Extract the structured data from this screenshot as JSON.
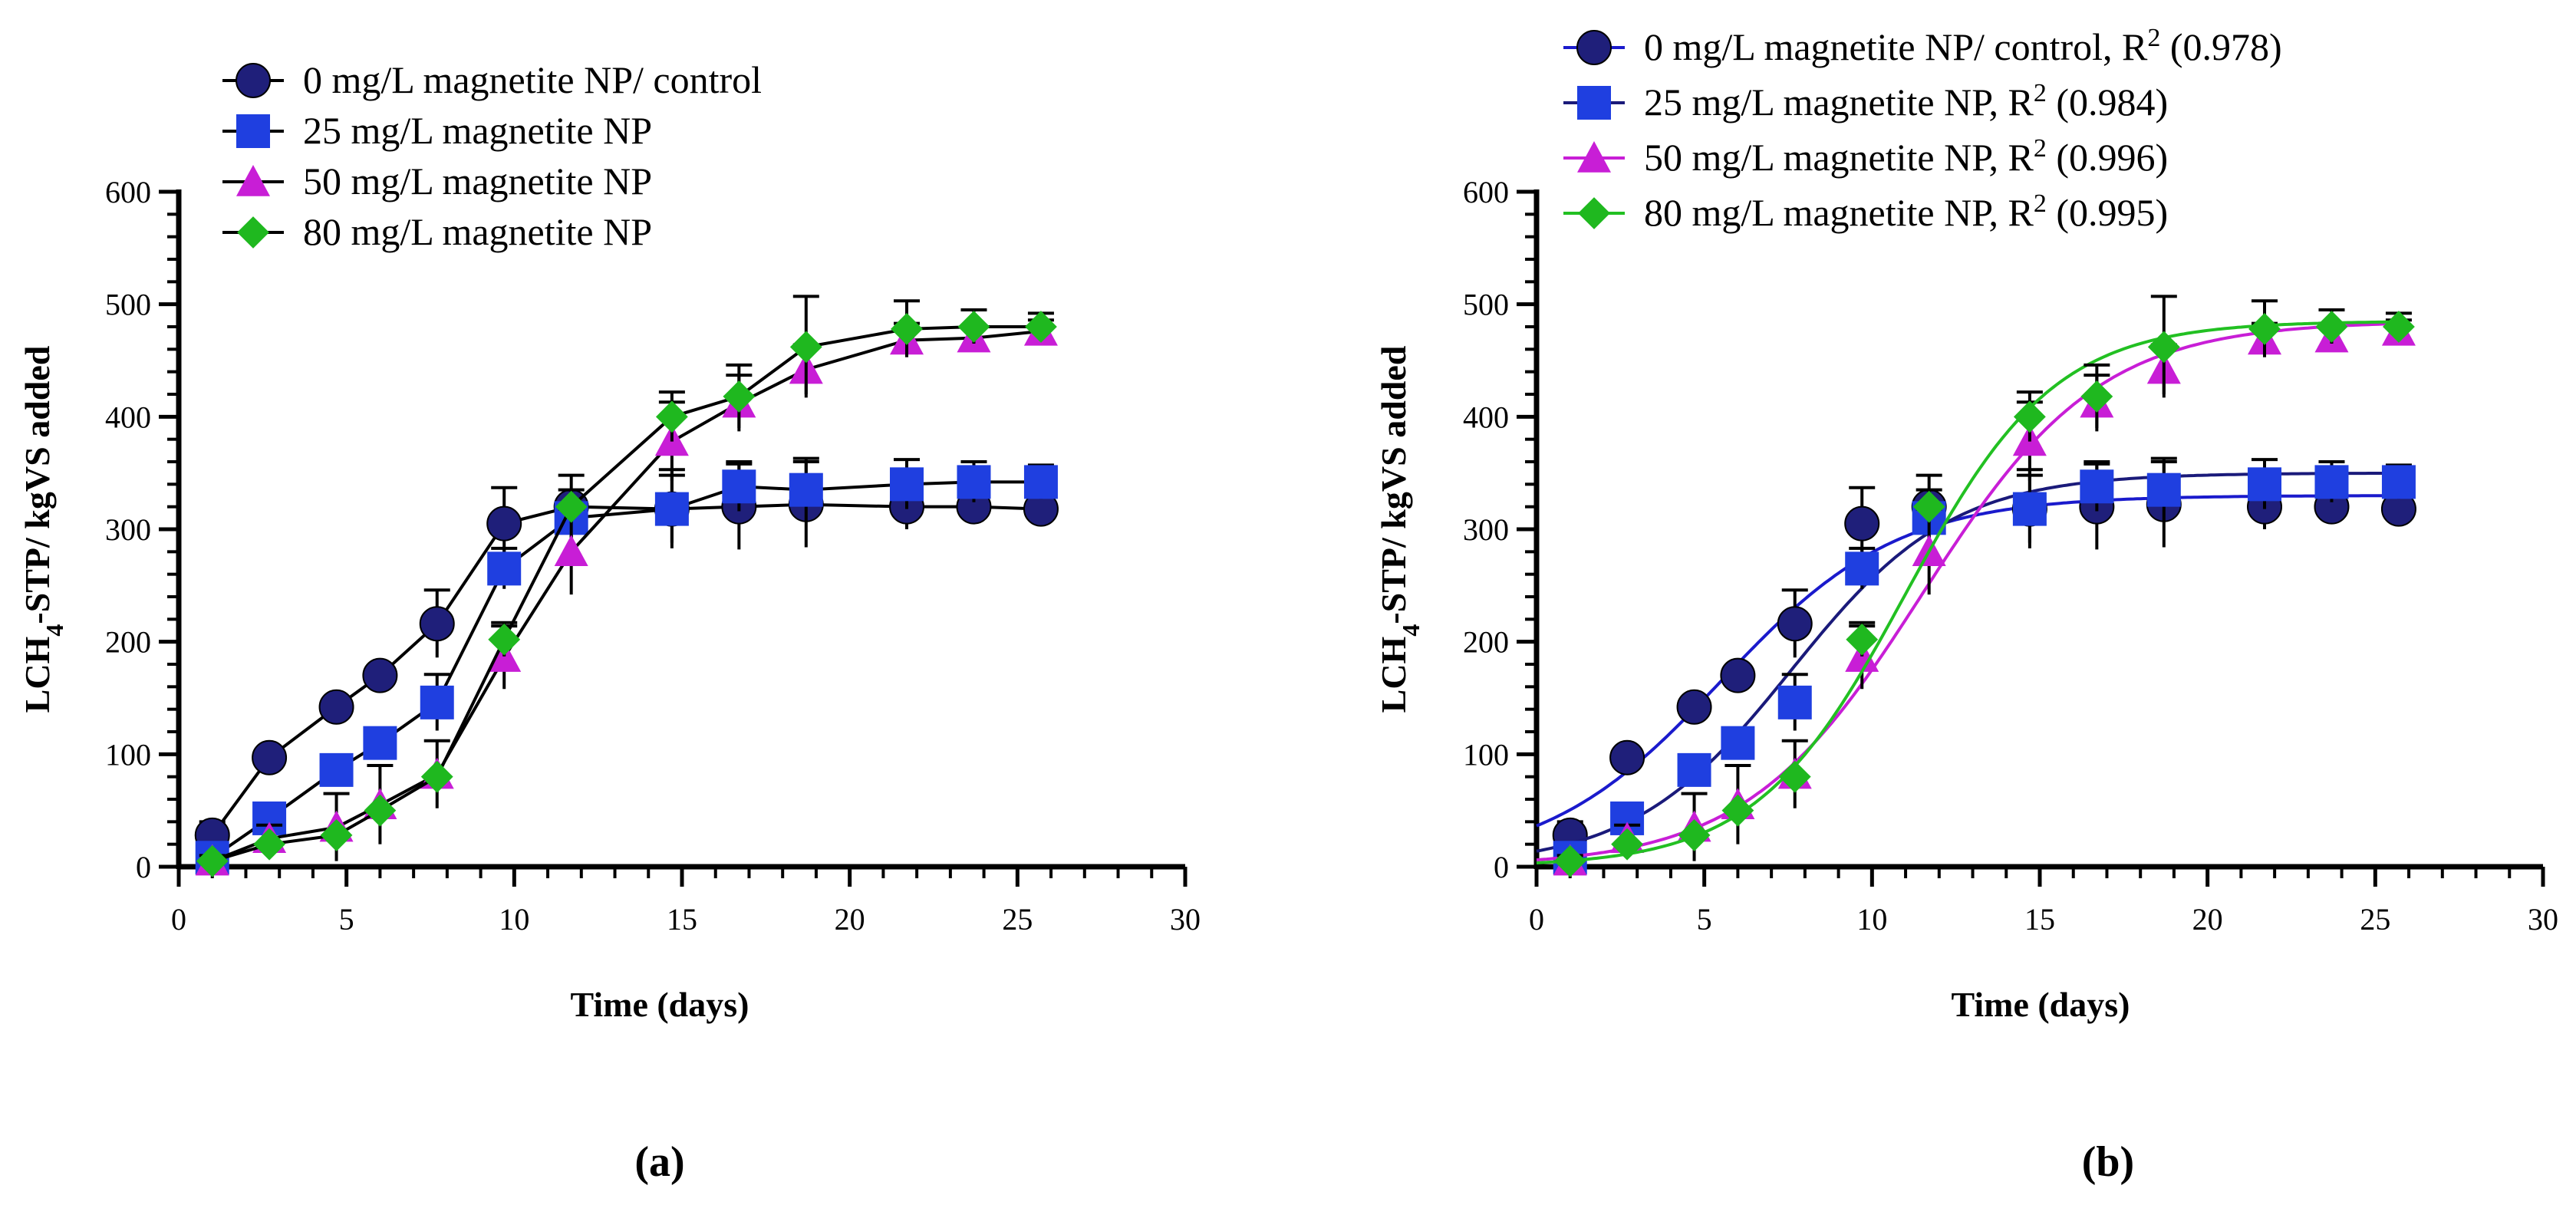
{
  "figure": {
    "panel_a_label": "(a)",
    "panel_b_label": "(b)"
  },
  "chart_data": [
    {
      "type": "line",
      "panel": "(a)",
      "title": "",
      "xlabel": "Time (days)",
      "ylabel": "LCH4-STP/ kgVS added",
      "ylabel_parts": {
        "pre": "LCH",
        "sub": "4",
        "post": "-STP/ kgVS added"
      },
      "xlim": [
        0,
        30
      ],
      "ylim": [
        0,
        600
      ],
      "xticks": [
        0,
        5,
        10,
        15,
        20,
        25,
        30
      ],
      "yticks": [
        0,
        100,
        200,
        300,
        400,
        500,
        600
      ],
      "grid": false,
      "legend_position": "top-left",
      "series": [
        {
          "name": "0 mg/L magnetite NP/ control",
          "marker": "circle",
          "color": "#1f1f7a",
          "line_color": "#000000",
          "x": [
            1,
            2.7,
            4.7,
            6,
            7.7,
            9.7,
            11.7,
            14.7,
            16.7,
            18.7,
            21.7,
            23.7,
            25.7
          ],
          "y": [
            28,
            97,
            142,
            170,
            216,
            305,
            320,
            318,
            320,
            322,
            320,
            320,
            318
          ],
          "err": [
            12,
            0,
            0,
            0,
            30,
            32,
            28,
            35,
            38,
            38,
            20,
            12,
            10
          ]
        },
        {
          "name": "25 mg/L magnetite NP",
          "marker": "square",
          "color": "#1f3fe0",
          "line_color": "#000000",
          "x": [
            1,
            2.7,
            4.7,
            6,
            7.7,
            9.7,
            11.7,
            14.7,
            16.7,
            18.7,
            21.7,
            23.7,
            25.7
          ],
          "y": [
            8,
            43,
            86,
            110,
            146,
            265,
            310,
            318,
            338,
            335,
            340,
            342,
            342
          ],
          "err": [
            8,
            0,
            0,
            0,
            25,
            18,
            25,
            30,
            22,
            28,
            22,
            18,
            15
          ]
        },
        {
          "name": "50 mg/L magnetite NP",
          "marker": "triangle",
          "color": "#c81ed6",
          "line_color": "#000000",
          "x": [
            1,
            2.7,
            4.7,
            6,
            7.7,
            9.7,
            11.7,
            14.7,
            16.7,
            18.7,
            21.7,
            23.7,
            25.7
          ],
          "y": [
            5,
            25,
            35,
            55,
            82,
            186,
            280,
            378,
            412,
            442,
            468,
            470,
            476
          ],
          "err": [
            5,
            12,
            30,
            35,
            30,
            28,
            38,
            35,
            25,
            22,
            15,
            10,
            10
          ]
        },
        {
          "name": "80 mg/L magnetite NP",
          "marker": "diamond",
          "color": "#1fb81f",
          "line_color": "#000000",
          "x": [
            1,
            2.7,
            4.7,
            6,
            7.7,
            9.7,
            11.7,
            14.7,
            16.7,
            18.7,
            21.7,
            23.7,
            25.7
          ],
          "y": [
            5,
            20,
            28,
            50,
            80,
            202,
            320,
            400,
            418,
            462,
            478,
            480,
            480
          ],
          "err": [
            0,
            0,
            0,
            0,
            0,
            15,
            0,
            22,
            28,
            45,
            25,
            15,
            12
          ]
        }
      ]
    },
    {
      "type": "line",
      "panel": "(b)",
      "title": "",
      "xlabel": "Time (days)",
      "ylabel": "LCH4-STP/ kgVS added",
      "ylabel_parts": {
        "pre": "LCH",
        "sub": "4",
        "post": "-STP/ kgVS added"
      },
      "xlim": [
        0,
        30
      ],
      "ylim": [
        0,
        600
      ],
      "xticks": [
        0,
        5,
        10,
        15,
        20,
        25,
        30
      ],
      "yticks": [
        0,
        100,
        200,
        300,
        400,
        500,
        600
      ],
      "grid": false,
      "legend_position": "top-left",
      "series": [
        {
          "name": "0 mg/L magnetite NP/ control, R2 (0.978)",
          "legend_pre": "0 mg/L magnetite NP/ control, R",
          "legend_sup": "2",
          "legend_post": " (0.978)",
          "marker": "circle",
          "color": "#1f1f7a",
          "line_color": "#1a1acc",
          "fit": {
            "A": 330,
            "k": 0.38,
            "t0": 5.5
          },
          "x": [
            1,
            2.7,
            4.7,
            6,
            7.7,
            9.7,
            11.7,
            14.7,
            16.7,
            18.7,
            21.7,
            23.7,
            25.7
          ],
          "y": [
            28,
            97,
            142,
            170,
            216,
            305,
            320,
            318,
            320,
            322,
            320,
            320,
            318
          ],
          "err": [
            12,
            0,
            0,
            0,
            30,
            32,
            28,
            35,
            38,
            38,
            20,
            12,
            10
          ]
        },
        {
          "name": "25 mg/L magnetite NP, R2 (0.984)",
          "legend_pre": "25 mg/L magnetite NP, R",
          "legend_sup": "2",
          "legend_post": " (0.984)",
          "marker": "square",
          "color": "#1f3fe0",
          "line_color": "#1a1a7a",
          "fit": {
            "A": 350,
            "k": 0.42,
            "t0": 7.6
          },
          "x": [
            1,
            2.7,
            4.7,
            6,
            7.7,
            9.7,
            11.7,
            14.7,
            16.7,
            18.7,
            21.7,
            23.7,
            25.7
          ],
          "y": [
            8,
            43,
            86,
            110,
            146,
            265,
            310,
            318,
            338,
            335,
            340,
            342,
            342
          ],
          "err": [
            8,
            0,
            0,
            0,
            25,
            18,
            25,
            30,
            22,
            28,
            22,
            18,
            15
          ]
        },
        {
          "name": "50 mg/L magnetite NP, R2 (0.996)",
          "legend_pre": "50 mg/L magnetite NP, R",
          "legend_sup": "2",
          "legend_post": " (0.996)",
          "marker": "triangle",
          "color": "#c81ed6",
          "line_color": "#c81ed6",
          "fit": {
            "A": 485,
            "k": 0.38,
            "t0": 11.5
          },
          "x": [
            1,
            2.7,
            4.7,
            6,
            7.7,
            9.7,
            11.7,
            14.7,
            16.7,
            18.7,
            21.7,
            23.7,
            25.7
          ],
          "y": [
            5,
            25,
            35,
            55,
            82,
            186,
            280,
            378,
            412,
            442,
            468,
            470,
            476
          ],
          "err": [
            5,
            12,
            30,
            35,
            30,
            28,
            38,
            35,
            25,
            22,
            15,
            10,
            10
          ]
        },
        {
          "name": "80 mg/L magnetite NP, R2 (0.995)",
          "legend_pre": "80 mg/L magnetite NP, R",
          "legend_sup": "2",
          "legend_post": " (0.995)",
          "marker": "diamond",
          "color": "#1fb81f",
          "line_color": "#22c022",
          "fit": {
            "A": 485,
            "k": 0.45,
            "t0": 11.0
          },
          "x": [
            1,
            2.7,
            4.7,
            6,
            7.7,
            9.7,
            11.7,
            14.7,
            16.7,
            18.7,
            21.7,
            23.7,
            25.7
          ],
          "y": [
            5,
            20,
            28,
            50,
            80,
            202,
            320,
            400,
            418,
            462,
            478,
            480,
            480
          ],
          "err": [
            0,
            0,
            0,
            0,
            0,
            15,
            0,
            22,
            28,
            45,
            25,
            15,
            12
          ]
        }
      ]
    }
  ]
}
